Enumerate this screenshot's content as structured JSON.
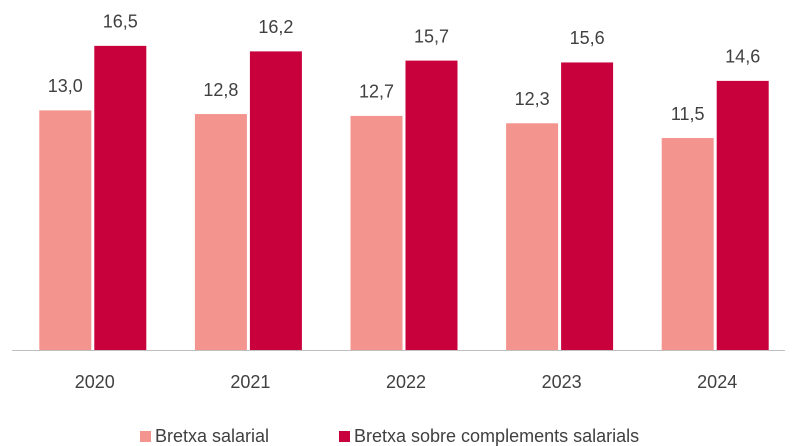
{
  "chart_data": {
    "type": "bar",
    "categories": [
      "2020",
      "2021",
      "2022",
      "2023",
      "2024"
    ],
    "series": [
      {
        "name": "Bretxa salarial",
        "color": "#f4948f",
        "values": [
          13.0,
          12.8,
          12.7,
          12.3,
          11.5
        ],
        "value_labels": [
          "13,0",
          "12,8",
          "12,7",
          "12,3",
          "11,5"
        ]
      },
      {
        "name": "Bretxa sobre complements salarials",
        "color": "#c8003c",
        "values": [
          16.5,
          16.2,
          15.7,
          15.6,
          14.6
        ],
        "value_labels": [
          "16,5",
          "16,2",
          "15,7",
          "15,6",
          "14,6"
        ]
      }
    ],
    "ylim": [
      0,
      18.5
    ]
  }
}
